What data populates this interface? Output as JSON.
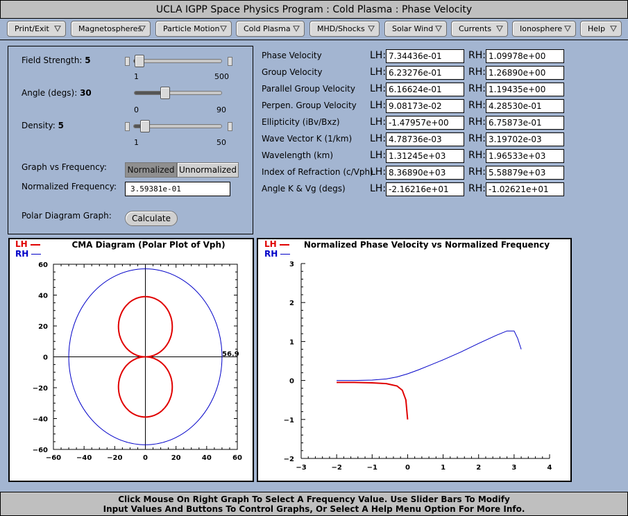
{
  "window": {
    "title": "UCLA IGPP Space Physics Program : Cold Plasma : Phase Velocity"
  },
  "menu": [
    {
      "label": "Print/Exit"
    },
    {
      "label": "Magnetospheres"
    },
    {
      "label": "Particle Motion"
    },
    {
      "label": "Cold Plasma"
    },
    {
      "label": "MHD/Shocks"
    },
    {
      "label": "Solar Wind"
    },
    {
      "label": "Currents"
    },
    {
      "label": "Ionosphere"
    },
    {
      "label": "Help"
    }
  ],
  "controls": {
    "field_strength": {
      "label": "Field Strength:",
      "value": "5",
      "min": "1",
      "max": "500",
      "level": 0.01
    },
    "angle": {
      "label": "Angle (degs):",
      "value": "30",
      "min": "0",
      "max": "90",
      "level": 0.333
    },
    "density": {
      "label": "Density:",
      "value": "5",
      "min": "1",
      "max": "50",
      "level": 0.08
    },
    "graph_vs_frequency": {
      "label": "Graph vs Frequency:",
      "normalized": "Normalized",
      "unnormalized": "Unnormalized"
    },
    "normalized_frequency": {
      "label": "Normalized Frequency:",
      "value": "3.59381e-01"
    },
    "polar": {
      "label": "Polar Diagram Graph:",
      "button": "Calculate"
    }
  },
  "outputs": {
    "lh_label": "LH:",
    "rh_label": "RH:",
    "rows": [
      {
        "label": "Phase Velocity",
        "lh": "7.34436e-01",
        "rh": "1.09978e+00"
      },
      {
        "label": "Group Velocity",
        "lh": "6.23276e-01",
        "rh": "1.26890e+00"
      },
      {
        "label": "Parallel Group Velocity",
        "lh": "6.16624e-01",
        "rh": "1.19435e+00"
      },
      {
        "label": "Perpen. Group Velocity",
        "lh": "9.08173e-02",
        "rh": "4.28530e-01"
      },
      {
        "label": "Ellipticity (iBv/Bxz)",
        "lh": "-1.47957e+00",
        "rh": "6.75873e-01"
      },
      {
        "label": "Wave Vector K (1/km)",
        "lh": "4.78736e-03",
        "rh": "3.19702e-03"
      },
      {
        "label": "Wavelength (km)",
        "lh": "1.31245e+03",
        "rh": "1.96533e+03"
      },
      {
        "label": "Index of Refraction (c/Vph)",
        "lh": "8.36890e+03",
        "rh": "5.58879e+03"
      },
      {
        "label": "Angle K & Vg (degs)",
        "lh": "-2.16216e+01",
        "rh": "-1.02621e+01"
      }
    ]
  },
  "colors": {
    "lh": "#e00000",
    "rh": "#0000c8"
  },
  "chart_data": [
    {
      "type": "line",
      "title": "CMA Diagram (Polar Plot of Vph)",
      "legend": [
        "LH",
        "RH"
      ],
      "legend_placement": "top-left",
      "xlim": [
        -60,
        60
      ],
      "ylim": [
        -60,
        60
      ],
      "ticks": [
        -60,
        -40,
        -20,
        0,
        20,
        40,
        60
      ],
      "annotation": "56.9",
      "series": [
        {
          "name": "LH",
          "shape": "figure-eight",
          "max_radius": 39
        },
        {
          "name": "RH",
          "shape": "ellipse",
          "semi_x": 50,
          "semi_y": 57
        }
      ]
    },
    {
      "type": "line",
      "title": "Normalized Phase Velocity vs Normalized Frequency",
      "legend": [
        "LH",
        "RH"
      ],
      "legend_placement": "top-left",
      "xlim": [
        -3,
        4
      ],
      "ylim": [
        -2,
        3
      ],
      "xticks": [
        -3,
        -2,
        -1,
        0,
        1,
        2,
        3,
        4
      ],
      "yticks": [
        -2,
        -1,
        0,
        1,
        2,
        3
      ],
      "series": [
        {
          "name": "RH",
          "x": [
            -2,
            -1.5,
            -1,
            -0.6,
            -0.3,
            0,
            0.3,
            0.6,
            1,
            1.5,
            2,
            2.5,
            2.8,
            3.0,
            3.1,
            3.2
          ],
          "y": [
            0,
            0.0,
            0.01,
            0.04,
            0.09,
            0.17,
            0.27,
            0.38,
            0.53,
            0.73,
            0.95,
            1.16,
            1.27,
            1.27,
            1.08,
            0.8
          ]
        },
        {
          "name": "LH",
          "x": [
            -2,
            -1.5,
            -1,
            -0.6,
            -0.3,
            -0.15,
            -0.05,
            0
          ],
          "y": [
            -0.05,
            -0.05,
            -0.06,
            -0.08,
            -0.14,
            -0.25,
            -0.5,
            -1.0
          ]
        }
      ]
    }
  ],
  "status": {
    "line1": "Click Mouse On Right Graph To Select A Frequency Value. Use Slider Bars To Modify",
    "line2": "Input Values And Buttons To Control Graphs, Or Select A Help Menu Option For More Info."
  }
}
